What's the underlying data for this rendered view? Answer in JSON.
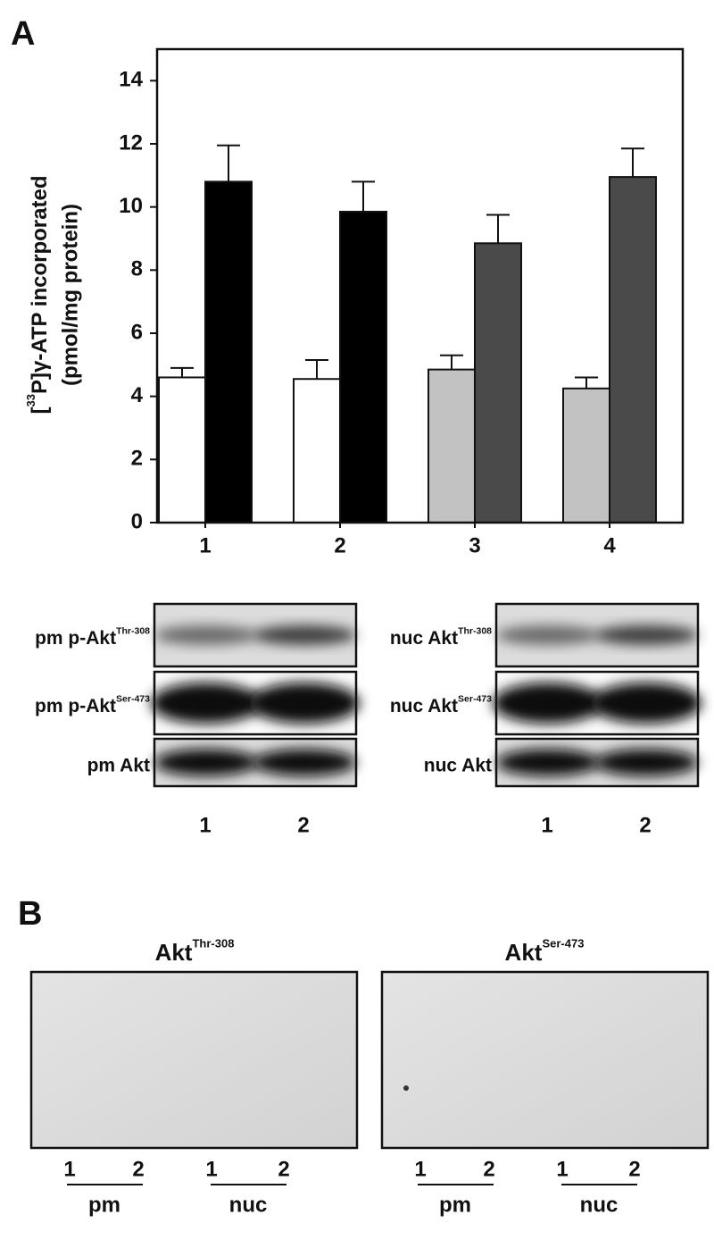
{
  "panel_a_label": "A",
  "chart_data": {
    "type": "bar",
    "ylabel": {
      "pre": "[",
      "sup": "33",
      "post": "P]γ-ATP incorporated"
    },
    "ylabel2": "(pmol/mg protein)",
    "categories": [
      "1",
      "2",
      "3",
      "4"
    ],
    "series": [
      {
        "colors": [
          "#ffffff",
          "#ffffff",
          "#c2c2c2",
          "#c2c2c2"
        ],
        "values": [
          4.6,
          4.55,
          4.85,
          4.25
        ],
        "errors": [
          0.3,
          0.6,
          0.45,
          0.35
        ]
      },
      {
        "colors": [
          "#000000",
          "#000000",
          "#4a4a4a",
          "#4a4a4a"
        ],
        "values": [
          10.8,
          9.85,
          8.85,
          10.95
        ],
        "errors": [
          1.15,
          0.95,
          0.9,
          0.9
        ]
      }
    ],
    "ylim": [
      0,
      15
    ],
    "yticks": [
      0,
      2,
      4,
      6,
      8,
      10,
      12,
      14
    ]
  },
  "blots_a": {
    "left": {
      "rows": [
        {
          "label": "pm p-Akt",
          "sup": "Thr-308"
        },
        {
          "label": "pm p-Akt",
          "sup": "Ser-473"
        },
        {
          "label": "pm Akt"
        }
      ],
      "lanes": [
        "1",
        "2"
      ]
    },
    "right": {
      "rows": [
        {
          "label": "nuc Akt",
          "sup": "Thr-308"
        },
        {
          "label": "nuc Akt",
          "sup": "Ser-473"
        },
        {
          "label": "nuc Akt"
        }
      ],
      "lanes": [
        "1",
        "2"
      ]
    }
  },
  "panel_b": {
    "label": "B",
    "blots": [
      {
        "title": "Akt",
        "sup": "Thr-308",
        "lanes": [
          "1",
          "2",
          "1",
          "2"
        ],
        "groups": [
          "pm",
          "nuc"
        ]
      },
      {
        "title": "Akt",
        "sup": "Ser-473",
        "lanes": [
          "1",
          "2",
          "1",
          "2"
        ],
        "groups": [
          "pm",
          "nuc"
        ]
      }
    ]
  }
}
